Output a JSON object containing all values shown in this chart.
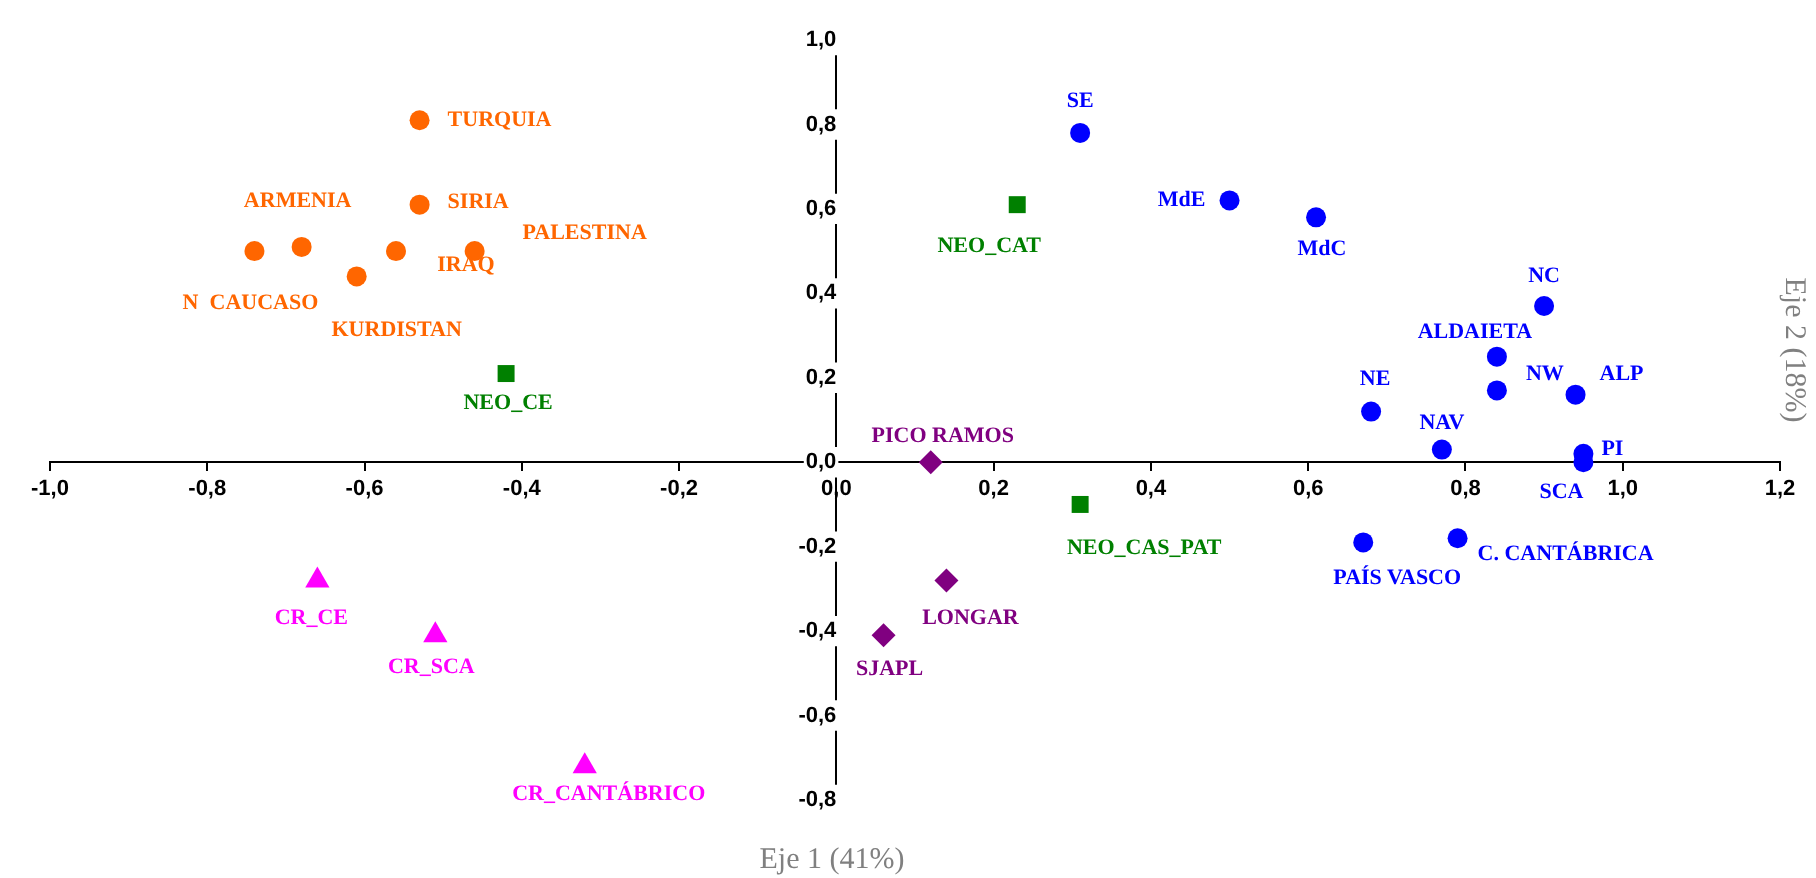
{
  "chart_data": {
    "type": "scatter",
    "xlabel": "Eje 1 (41%)",
    "ylabel": "Eje 2 (18%)",
    "xlim": [
      -1.0,
      1.2
    ],
    "ylim": [
      -0.8,
      1.0
    ],
    "xticks": [
      {
        "value": -1.0,
        "label": "-1,0"
      },
      {
        "value": -0.8,
        "label": "-0,8"
      },
      {
        "value": -0.6,
        "label": "-0,6"
      },
      {
        "value": -0.4,
        "label": "-0,4"
      },
      {
        "value": -0.2,
        "label": "-0,2"
      },
      {
        "value": 0,
        "label": "0,0"
      },
      {
        "value": 0.2,
        "label": "0,2"
      },
      {
        "value": 0.4,
        "label": "0,4"
      },
      {
        "value": 0.6,
        "label": "0,6"
      },
      {
        "value": 0.8,
        "label": "0,8"
      },
      {
        "value": 1.0,
        "label": "1,0"
      },
      {
        "value": 1.2,
        "label": "1,2"
      }
    ],
    "yticks": [
      {
        "value": -0.8,
        "label": "-0,8"
      },
      {
        "value": -0.6,
        "label": "-0,6"
      },
      {
        "value": -0.4,
        "label": "-0,4"
      },
      {
        "value": -0.2,
        "label": "-0,2"
      },
      {
        "value": 0,
        "label": "0,0"
      },
      {
        "value": 0.2,
        "label": "0,2"
      },
      {
        "value": 0.4,
        "label": "0,4"
      },
      {
        "value": 0.6,
        "label": "0,6"
      },
      {
        "value": 0.8,
        "label": "0,8"
      },
      {
        "value": 1.0,
        "label": "1,0"
      }
    ],
    "series": [
      {
        "color": "#ff6600",
        "marker": "circle",
        "x": [
          -0.53,
          -0.53,
          -0.68,
          -0.74,
          -0.61,
          -0.56,
          -0.46
        ],
        "values": [
          0.81,
          0.61,
          0.51,
          0.5,
          0.44,
          0.5,
          0.5
        ],
        "value_labels": [
          "TURQUIA",
          "SIRIA",
          "ARMENIA",
          "N  CAUCASO",
          "KURDISTAN",
          "IRAQ",
          "PALESTINA"
        ]
      },
      {
        "color": "#0000ff",
        "marker": "circle",
        "x": [
          0.31,
          0.5,
          0.61,
          0.9,
          0.84,
          0.84,
          0.94,
          0.68,
          0.77,
          0.95,
          0.95,
          0.67,
          0.79
        ],
        "values": [
          0.78,
          0.62,
          0.58,
          0.37,
          0.25,
          0.17,
          0.16,
          0.12,
          0.03,
          0.02,
          0.0,
          -0.19,
          -0.18
        ],
        "value_labels": [
          "SE",
          "MdE",
          "MdC",
          "NC",
          "ALDAIETA",
          "NW",
          "ALP",
          "NE",
          "NAV",
          "PI",
          "SCA",
          "PAÍS VASCO",
          "C. CANTÁBRICA"
        ]
      },
      {
        "color": "#008000",
        "marker": "square",
        "x": [
          0.23,
          -0.42,
          0.31
        ],
        "values": [
          0.61,
          0.21,
          -0.1
        ],
        "value_labels": [
          "NEO_CAT",
          "NEO_CE",
          "NEO_CAS_PAT"
        ]
      },
      {
        "color": "#800080",
        "marker": "diamond",
        "x": [
          0.12,
          0.14,
          0.06
        ],
        "values": [
          0.0,
          -0.28,
          -0.41
        ],
        "value_labels": [
          "PICO RAMOS",
          "LONGAR",
          "SJAPL"
        ]
      },
      {
        "color": "#ff00ff",
        "marker": "triangle",
        "x": [
          -0.66,
          -0.51,
          -0.32
        ],
        "values": [
          -0.28,
          -0.41,
          -0.72
        ],
        "value_labels": [
          "CR_CE",
          "CR_SCA",
          "CR_CANTÁBRICO"
        ]
      }
    ]
  }
}
